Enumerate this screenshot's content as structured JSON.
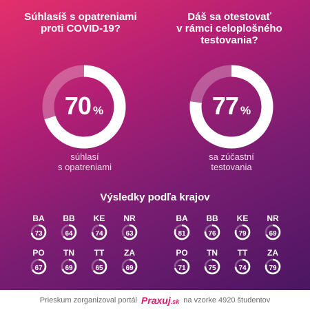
{
  "questions": {
    "agree": {
      "title_lines": [
        "Súhlasíš s opatreniami",
        "proti COVID-19?"
      ],
      "value": "70",
      "percent": 70,
      "unit": "%",
      "caption_lines": [
        "súhlasí",
        "s opatreniami"
      ]
    },
    "test": {
      "title_lines": [
        "Dáš sa otestovať",
        "v rámci celoplošného",
        "testovania?"
      ],
      "value": "77",
      "percent": 77,
      "unit": "%",
      "caption_lines": [
        "sa zúčastní",
        "testovania"
      ]
    }
  },
  "regions_title": "Výsledky podľa krajov",
  "regions_left": [
    {
      "code": "BA",
      "value": 73
    },
    {
      "code": "BB",
      "value": 64
    },
    {
      "code": "KE",
      "value": 74
    },
    {
      "code": "NR",
      "value": 63
    },
    {
      "code": "PO",
      "value": 67
    },
    {
      "code": "TN",
      "value": 69
    },
    {
      "code": "TT",
      "value": 65
    },
    {
      "code": "ZA",
      "value": 69
    }
  ],
  "regions_right": [
    {
      "code": "BA",
      "value": 81
    },
    {
      "code": "BB",
      "value": 76
    },
    {
      "code": "KE",
      "value": 79
    },
    {
      "code": "NR",
      "value": 69
    },
    {
      "code": "PO",
      "value": 71
    },
    {
      "code": "TN",
      "value": 75
    },
    {
      "code": "TT",
      "value": 74
    },
    {
      "code": "ZA",
      "value": 79
    }
  ],
  "footer": {
    "text_before": "Prieskum zorganizoval portál",
    "logo": "Praxuj",
    "logo_suffix": ".sk",
    "text_after": "na vzorke 4920 študentov"
  },
  "colors": {
    "ring_track": "rgba(255,255,255,0.28)",
    "ring_fill": "#ffffff",
    "gradient_top": "#e4306b",
    "gradient_bottom": "#4a1662",
    "logo": "#d6206d"
  },
  "chart_data": [
    {
      "type": "pie",
      "title": "Súhlasíš s opatreniami proti COVID-19?",
      "values": [
        70
      ],
      "unit": "%",
      "label": "súhlasí s opatreniami"
    },
    {
      "type": "pie",
      "title": "Dáš sa otestovať v rámci celoplošného testovania?",
      "values": [
        77
      ],
      "unit": "%",
      "label": "sa zúčastní testovania"
    },
    {
      "type": "table",
      "title": "Výsledky podľa krajov",
      "categories": [
        "BA",
        "BB",
        "KE",
        "NR",
        "PO",
        "TN",
        "TT",
        "ZA"
      ],
      "series": [
        {
          "values": [
            73,
            64,
            74,
            63,
            67,
            69,
            65,
            69
          ]
        },
        {
          "values": [
            81,
            76,
            79,
            69,
            71,
            75,
            74,
            79
          ]
        }
      ]
    }
  ]
}
